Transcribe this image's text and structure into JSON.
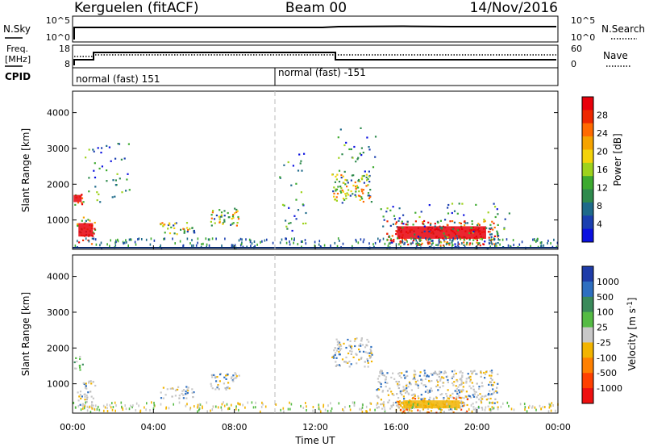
{
  "header": {
    "station": "Kerguelen (fitACF)",
    "beam": "Beam 00",
    "date": "14/Nov/2016"
  },
  "nsky_panel": {
    "left_label": "N.Sky",
    "right_label": "N.Search",
    "left_ticks": [
      "10^5",
      "10^0"
    ],
    "right_ticks": [
      "10^5",
      "10^0"
    ]
  },
  "freq_panel": {
    "left_label_1": "Freq.",
    "left_label_2": "[MHz]",
    "right_label": "Nave",
    "left_ticks": [
      "18",
      "8"
    ],
    "right_ticks": [
      "60",
      "0"
    ]
  },
  "cpid": {
    "label": "CPID",
    "segments": [
      {
        "text": "normal (fast) 151",
        "start_hour": 0
      },
      {
        "text": "normal (fast) -151",
        "start_hour": 10
      }
    ]
  },
  "chart_data": [
    {
      "type": "heatmap",
      "panel": "power",
      "ylabel": "Slant Range [km]",
      "y_ticks": [
        1000,
        2000,
        3000,
        4000
      ],
      "ylim": [
        180,
        4600
      ],
      "xlim_hours": [
        0,
        24
      ],
      "colorbar": {
        "label": "Power [dB]",
        "ticks": [
          "28",
          "24",
          "20",
          "16",
          "12",
          "8",
          "4"
        ],
        "colors": [
          "#e8000b",
          "#ee2800",
          "#ff6a00",
          "#f5a300",
          "#f3d20a",
          "#9ed21c",
          "#3daa2f",
          "#2e8a4d",
          "#1e6a8a",
          "#1a3fb0",
          "#0a10e0"
        ]
      },
      "regions": [
        {
          "t0": 0.0,
          "t1": 0.5,
          "r0": 1400,
          "r1": 1800,
          "level": "high"
        },
        {
          "t0": 0.2,
          "t1": 1.1,
          "r0": 350,
          "r1": 1100,
          "level": "high"
        },
        {
          "t0": 0.5,
          "t1": 2.8,
          "r0": 1500,
          "r1": 3200,
          "level": "sparse"
        },
        {
          "t0": 4.3,
          "t1": 6.0,
          "r0": 600,
          "r1": 950,
          "level": "mid"
        },
        {
          "t0": 6.8,
          "t1": 8.2,
          "r0": 850,
          "r1": 1350,
          "level": "mid"
        },
        {
          "t0": 10.2,
          "t1": 11.5,
          "r0": 700,
          "r1": 2900,
          "level": "sparse"
        },
        {
          "t0": 12.8,
          "t1": 14.8,
          "r0": 1500,
          "r1": 2300,
          "level": "mid"
        },
        {
          "t0": 13.0,
          "t1": 15.0,
          "r0": 2300,
          "r1": 3600,
          "level": "sparse"
        },
        {
          "t0": 15.5,
          "t1": 21.0,
          "r0": 300,
          "r1": 1000,
          "level": "high"
        },
        {
          "t0": 15.2,
          "t1": 21.7,
          "r0": 200,
          "r1": 1500,
          "level": "sparse"
        }
      ]
    },
    {
      "type": "heatmap",
      "panel": "velocity",
      "ylabel": "Slant Range [km]",
      "y_ticks": [
        1000,
        2000,
        3000,
        4000
      ],
      "ylim": [
        180,
        4600
      ],
      "xlim_hours": [
        0,
        24
      ],
      "xlabel": "Time UT",
      "x_tick_labels": [
        "00:00",
        "04:00",
        "08:00",
        "12:00",
        "16:00",
        "20:00",
        "00:00"
      ],
      "x_tick_hours": [
        0,
        4,
        8,
        12,
        16,
        20,
        24
      ],
      "colorbar": {
        "label": "Velocity [m s^-1]",
        "ticks": [
          "1000",
          "500",
          "100",
          "25",
          "-25",
          "-100",
          "-500",
          "-1000"
        ],
        "colors": [
          "#1e3ca8",
          "#2e6fc0",
          "#3a8a5a",
          "#55bb44",
          "#c8c8c8",
          "#f2b400",
          "#ff8000",
          "#ff4000",
          "#ee1010"
        ]
      },
      "regions": [
        {
          "t0": 0.0,
          "t1": 0.5,
          "r0": 1400,
          "r1": 1800,
          "level": "green"
        },
        {
          "t0": 0.2,
          "t1": 1.1,
          "r0": 350,
          "r1": 1100,
          "level": "grey"
        },
        {
          "t0": 4.3,
          "t1": 6.0,
          "r0": 600,
          "r1": 950,
          "level": "grey"
        },
        {
          "t0": 6.8,
          "t1": 8.2,
          "r0": 850,
          "r1": 1350,
          "level": "grey"
        },
        {
          "t0": 12.8,
          "t1": 14.8,
          "r0": 1500,
          "r1": 2300,
          "level": "grey"
        },
        {
          "t0": 15.0,
          "t1": 21.0,
          "r0": 300,
          "r1": 1400,
          "level": "grey"
        },
        {
          "t0": 16.0,
          "t1": 19.5,
          "r0": 200,
          "r1": 650,
          "level": "orange"
        }
      ]
    }
  ]
}
